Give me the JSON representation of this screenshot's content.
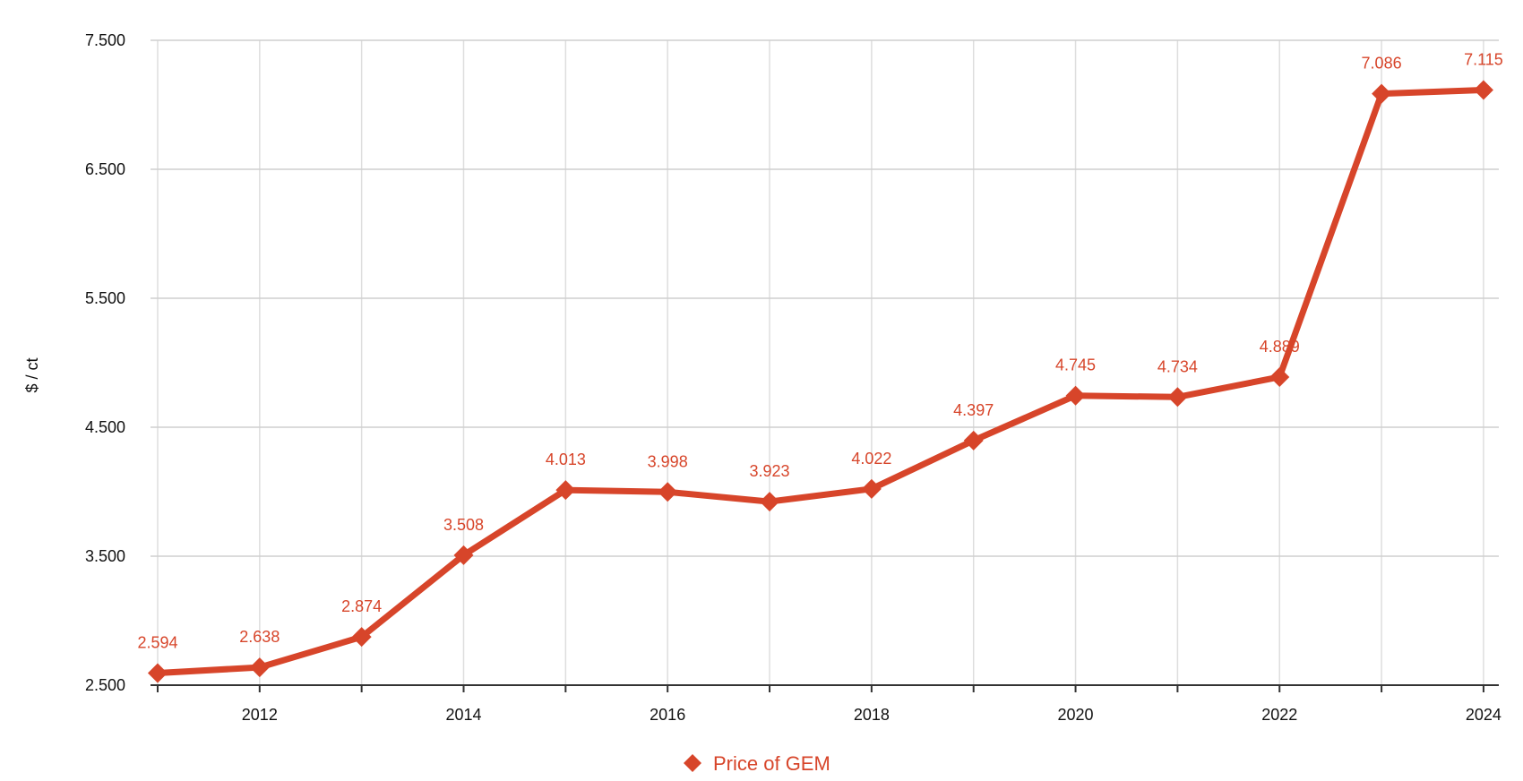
{
  "chart_data": {
    "type": "line",
    "x": [
      2011,
      2012,
      2013,
      2014,
      2015,
      2016,
      2017,
      2018,
      2019,
      2020,
      2021,
      2022,
      2023,
      2024
    ],
    "x_tick_labels": [
      "2012",
      "2014",
      "2016",
      "2018",
      "2020",
      "2022",
      "2024"
    ],
    "series": [
      {
        "name": "Price of GEM",
        "values": [
          2594,
          2638,
          2874,
          3508,
          4013,
          3998,
          3923,
          4022,
          4397,
          4745,
          4734,
          4889,
          7086,
          7115
        ],
        "labels": [
          "2.594",
          "2.638",
          "2.874",
          "3.508",
          "4.013",
          "3.998",
          "3.923",
          "4.022",
          "4.397",
          "4.745",
          "4.734",
          "4.889",
          "7.086",
          "7.115"
        ],
        "color": "#d7452a"
      }
    ],
    "ylabel": "$ / ct",
    "xlabel": "",
    "title": "",
    "ylim": [
      2500,
      7500
    ],
    "y_ticks": [
      2500,
      3500,
      4500,
      5500,
      6500,
      7500
    ],
    "y_tick_labels": [
      "2.500",
      "3.500",
      "4.500",
      "5.500",
      "6.500",
      "7.500"
    ],
    "grid": true,
    "legend_position": "bottom",
    "marker": "diamond"
  }
}
